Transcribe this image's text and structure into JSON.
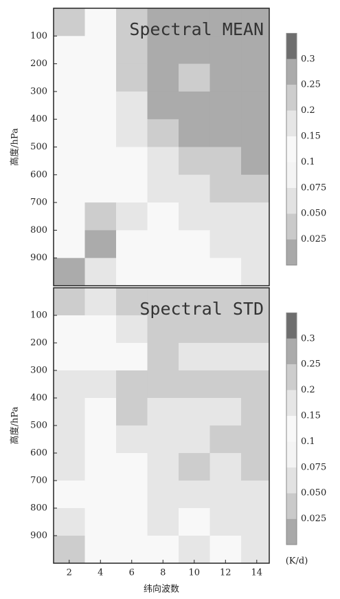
{
  "chart_data": [
    {
      "type": "contour",
      "title": "Spectral MEAN",
      "ylabel": "高度/hPa",
      "x": [
        2,
        4,
        6,
        8,
        10,
        12,
        14
      ],
      "y": [
        50,
        150,
        250,
        350,
        450,
        550,
        650,
        750,
        850,
        950
      ],
      "z": [
        [
          0.2,
          0.12,
          0.22,
          0.27,
          0.27,
          0.27,
          0.27
        ],
        [
          0.12,
          0.1,
          0.2,
          0.27,
          0.27,
          0.27,
          0.27
        ],
        [
          0.1,
          0.1,
          0.2,
          0.25,
          0.22,
          0.27,
          0.27
        ],
        [
          0.1,
          0.12,
          0.18,
          0.25,
          0.25,
          0.27,
          0.27
        ],
        [
          0.1,
          0.1,
          0.15,
          0.22,
          0.25,
          0.25,
          0.27
        ],
        [
          0.1,
          0.1,
          0.12,
          0.18,
          0.22,
          0.22,
          0.25
        ],
        [
          0.1,
          0.12,
          0.1,
          0.15,
          0.18,
          0.2,
          0.2
        ],
        [
          0.12,
          0.2,
          0.15,
          0.12,
          0.15,
          0.18,
          0.18
        ],
        [
          0.12,
          0.25,
          0.1,
          0.1,
          0.12,
          0.15,
          0.15
        ],
        [
          0.27,
          0.15,
          0.12,
          0.1,
          0.12,
          0.12,
          0.15
        ]
      ],
      "xlim": [
        1,
        14.8
      ],
      "ylim": [
        1000,
        0
      ],
      "yticks": [
        100,
        200,
        300,
        400,
        500,
        600,
        700,
        800,
        900
      ],
      "levels": [
        0.025,
        {
          "value": 0.05,
          "label": "0.050"
        },
        0.075,
        0.1,
        0.15,
        0.2,
        0.25,
        0.3
      ],
      "colors": [
        "#a9a9a9",
        "#cacaca",
        "#e2e2e2",
        "#f4f4f4",
        "#f8f8f8",
        "#e6e6e6",
        "#cdcdcd",
        "#ababab",
        "#6e6e6e"
      ]
    },
    {
      "type": "contour",
      "title": "Spectral STD",
      "ylabel": "高度/hPa",
      "xlabel": "纬向波数",
      "colorbar_label": "(K/d)",
      "x": [
        2,
        4,
        6,
        8,
        10,
        12,
        14
      ],
      "y": [
        50,
        150,
        250,
        350,
        450,
        550,
        650,
        750,
        850,
        950
      ],
      "z": [
        [
          0.2,
          0.15,
          0.22,
          0.22,
          0.2,
          0.2,
          0.2
        ],
        [
          0.12,
          0.1,
          0.15,
          0.2,
          0.2,
          0.2,
          0.2
        ],
        [
          0.12,
          0.12,
          0.12,
          0.2,
          0.18,
          0.18,
          0.18
        ],
        [
          0.15,
          0.15,
          0.2,
          0.2,
          0.22,
          0.2,
          0.2
        ],
        [
          0.15,
          0.12,
          0.2,
          0.18,
          0.18,
          0.18,
          0.2
        ],
        [
          0.15,
          0.1,
          0.15,
          0.18,
          0.18,
          0.2,
          0.22
        ],
        [
          0.15,
          0.1,
          0.12,
          0.18,
          0.2,
          0.18,
          0.2
        ],
        [
          0.12,
          0.1,
          0.12,
          0.15,
          0.15,
          0.18,
          0.18
        ],
        [
          0.15,
          0.12,
          0.12,
          0.15,
          0.12,
          0.15,
          0.15
        ],
        [
          0.2,
          0.12,
          0.12,
          0.12,
          0.15,
          0.12,
          0.15
        ]
      ],
      "xlim": [
        1,
        14.8
      ],
      "ylim": [
        1000,
        0
      ],
      "xticks": [
        2,
        4,
        6,
        8,
        10,
        12,
        14
      ],
      "yticks": [
        100,
        200,
        300,
        400,
        500,
        600,
        700,
        800,
        900
      ],
      "levels": [
        0.025,
        {
          "value": 0.05,
          "label": "0.050"
        },
        0.075,
        0.1,
        0.15,
        0.2,
        0.25,
        0.3
      ],
      "colors": [
        "#a9a9a9",
        "#cacaca",
        "#e2e2e2",
        "#f4f4f4",
        "#f8f8f8",
        "#e6e6e6",
        "#cdcdcd",
        "#ababab",
        "#6e6e6e"
      ]
    }
  ]
}
